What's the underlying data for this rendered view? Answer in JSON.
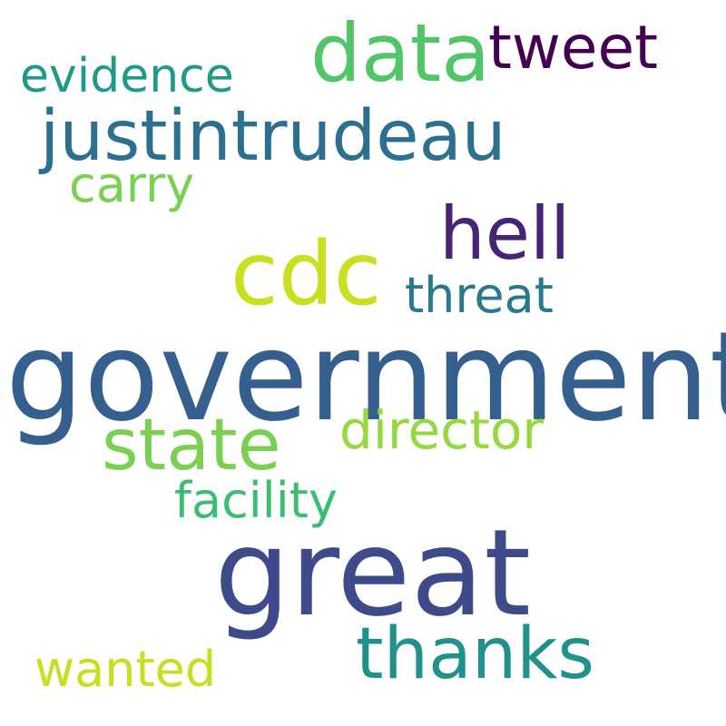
{
  "words": [
    {
      "text": "government",
      "color": "#355f8d"
    },
    {
      "text": "great",
      "color": "#3e4a89"
    },
    {
      "text": "cdc",
      "color": "#c8e020"
    },
    {
      "text": "data",
      "color": "#52c569"
    },
    {
      "text": "justintrudeau",
      "color": "#2d6f8e"
    },
    {
      "text": "hell",
      "color": "#482475"
    },
    {
      "text": "state",
      "color": "#7ad151"
    },
    {
      "text": "thanks",
      "color": "#21918c"
    },
    {
      "text": "tweet",
      "color": "#440154"
    },
    {
      "text": "director",
      "color": "#95d840"
    },
    {
      "text": "threat",
      "color": "#2a788e"
    },
    {
      "text": "facility",
      "color": "#3dbc74"
    },
    {
      "text": "evidence",
      "color": "#1f9a8a"
    },
    {
      "text": "carry",
      "color": "#7ad151"
    },
    {
      "text": "wanted",
      "color": "#c5e021"
    }
  ]
}
